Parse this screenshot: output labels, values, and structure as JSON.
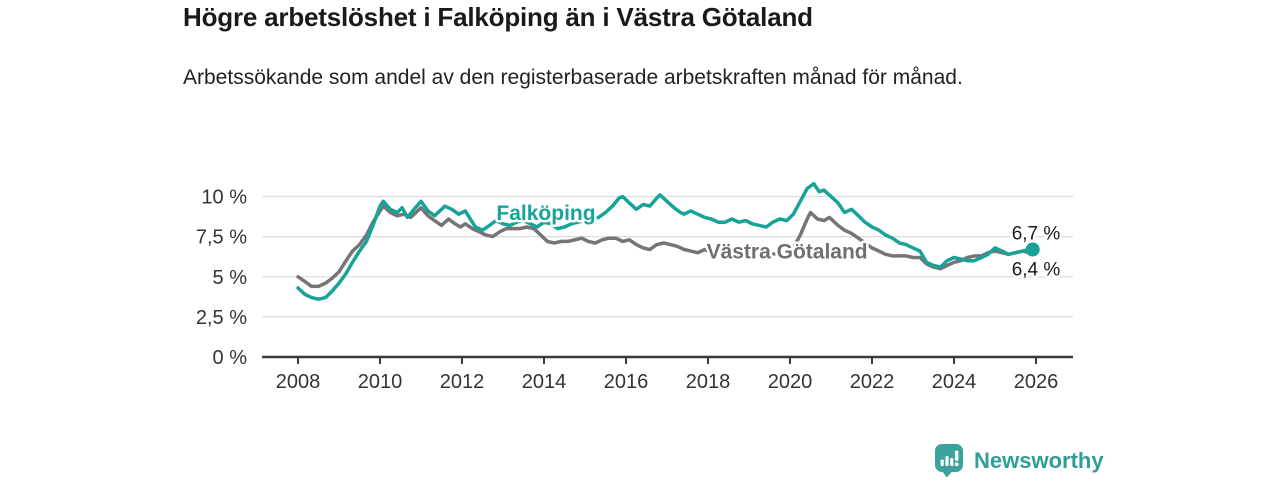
{
  "chart_data": {
    "type": "line",
    "title": "Högre arbetslöshet i Falköping än i Västra Götaland",
    "subtitle": "Arbetssökande som andel av den registerbaserade arbetskraften månad för månad.",
    "xlabel": "",
    "ylabel": "",
    "x_unit": "year",
    "xlim": [
      2007.8,
      2026.9
    ],
    "ylim": [
      0,
      11
    ],
    "grid": "horizontal",
    "legend": "inline-labels",
    "x_ticks": [
      "2008",
      "2010",
      "2012",
      "2014",
      "2016",
      "2018",
      "2020",
      "2022",
      "2024",
      "2026"
    ],
    "y_ticks": [
      {
        "value": 0,
        "label": "0 %"
      },
      {
        "value": 2.5,
        "label": "2,5 %"
      },
      {
        "value": 5,
        "label": "5 %"
      },
      {
        "value": 7.5,
        "label": "7,5 %"
      },
      {
        "value": 10,
        "label": "10 %"
      }
    ],
    "colors": {
      "grid": "#dcdcdc",
      "axis": "#3a3a3a",
      "tick_label": "#333333"
    },
    "series": [
      {
        "name": "Västra Götaland",
        "slug": "vastra-gotaland",
        "color": "#757575",
        "end_value_label": "6,4 %",
        "end_dot": false,
        "points": [
          [
            2008.0,
            5.0
          ],
          [
            2008.17,
            4.7
          ],
          [
            2008.33,
            4.4
          ],
          [
            2008.5,
            4.4
          ],
          [
            2008.67,
            4.6
          ],
          [
            2008.83,
            4.9
          ],
          [
            2009.0,
            5.3
          ],
          [
            2009.17,
            6.0
          ],
          [
            2009.33,
            6.6
          ],
          [
            2009.5,
            7.0
          ],
          [
            2009.67,
            7.6
          ],
          [
            2009.83,
            8.4
          ],
          [
            2010.0,
            9.1
          ],
          [
            2010.08,
            9.4
          ],
          [
            2010.25,
            9.0
          ],
          [
            2010.42,
            8.8
          ],
          [
            2010.58,
            8.9
          ],
          [
            2010.75,
            8.7
          ],
          [
            2010.92,
            9.1
          ],
          [
            2011.0,
            9.3
          ],
          [
            2011.17,
            8.8
          ],
          [
            2011.33,
            8.5
          ],
          [
            2011.5,
            8.2
          ],
          [
            2011.67,
            8.6
          ],
          [
            2011.83,
            8.3
          ],
          [
            2011.96,
            8.1
          ],
          [
            2012.08,
            8.3
          ],
          [
            2012.25,
            8.0
          ],
          [
            2012.42,
            7.8
          ],
          [
            2012.58,
            7.6
          ],
          [
            2012.75,
            7.5
          ],
          [
            2012.92,
            7.8
          ],
          [
            2013.08,
            8.0
          ],
          [
            2013.25,
            8.0
          ],
          [
            2013.42,
            8.0
          ],
          [
            2013.58,
            8.1
          ],
          [
            2013.75,
            8.0
          ],
          [
            2013.92,
            7.6
          ],
          [
            2014.08,
            7.2
          ],
          [
            2014.25,
            7.1
          ],
          [
            2014.42,
            7.2
          ],
          [
            2014.58,
            7.2
          ],
          [
            2014.75,
            7.3
          ],
          [
            2014.92,
            7.4
          ],
          [
            2015.08,
            7.2
          ],
          [
            2015.25,
            7.1
          ],
          [
            2015.42,
            7.3
          ],
          [
            2015.58,
            7.4
          ],
          [
            2015.75,
            7.4
          ],
          [
            2015.92,
            7.2
          ],
          [
            2016.08,
            7.3
          ],
          [
            2016.25,
            7.0
          ],
          [
            2016.42,
            6.8
          ],
          [
            2016.58,
            6.7
          ],
          [
            2016.75,
            7.0
          ],
          [
            2016.92,
            7.1
          ],
          [
            2017.08,
            7.0
          ],
          [
            2017.25,
            6.9
          ],
          [
            2017.42,
            6.7
          ],
          [
            2017.58,
            6.6
          ],
          [
            2017.75,
            6.5
          ],
          [
            2017.92,
            6.7
          ],
          [
            2018.08,
            6.5
          ],
          [
            2018.25,
            6.4
          ],
          [
            2018.42,
            6.4
          ],
          [
            2018.58,
            6.4
          ],
          [
            2018.75,
            6.3
          ],
          [
            2018.92,
            6.4
          ],
          [
            2019.08,
            6.4
          ],
          [
            2019.25,
            6.3
          ],
          [
            2019.42,
            6.3
          ],
          [
            2019.58,
            6.4
          ],
          [
            2019.75,
            6.5
          ],
          [
            2019.92,
            6.5
          ],
          [
            2020.08,
            6.8
          ],
          [
            2020.25,
            7.6
          ],
          [
            2020.42,
            8.6
          ],
          [
            2020.5,
            9.0
          ],
          [
            2020.67,
            8.6
          ],
          [
            2020.83,
            8.5
          ],
          [
            2020.96,
            8.7
          ],
          [
            2021.17,
            8.2
          ],
          [
            2021.33,
            7.9
          ],
          [
            2021.5,
            7.7
          ],
          [
            2021.67,
            7.4
          ],
          [
            2021.83,
            7.1
          ],
          [
            2022.0,
            6.8
          ],
          [
            2022.17,
            6.6
          ],
          [
            2022.33,
            6.4
          ],
          [
            2022.5,
            6.3
          ],
          [
            2022.67,
            6.3
          ],
          [
            2022.83,
            6.3
          ],
          [
            2023.0,
            6.2
          ],
          [
            2023.17,
            6.2
          ],
          [
            2023.33,
            5.8
          ],
          [
            2023.5,
            5.6
          ],
          [
            2023.67,
            5.5
          ],
          [
            2023.83,
            5.7
          ],
          [
            2024.0,
            5.9
          ],
          [
            2024.17,
            6.0
          ],
          [
            2024.33,
            6.2
          ],
          [
            2024.5,
            6.3
          ],
          [
            2024.67,
            6.3
          ],
          [
            2024.83,
            6.5
          ],
          [
            2025.0,
            6.6
          ],
          [
            2025.17,
            6.5
          ],
          [
            2025.33,
            6.4
          ],
          [
            2025.5,
            6.5
          ],
          [
            2025.67,
            6.6
          ],
          [
            2025.83,
            6.5
          ],
          [
            2025.92,
            6.4
          ]
        ]
      },
      {
        "name": "Falköping",
        "slug": "falkoping",
        "color": "#17a398",
        "end_value_label": "6,7 %",
        "end_dot": true,
        "points": [
          [
            2008.0,
            4.3
          ],
          [
            2008.17,
            3.9
          ],
          [
            2008.33,
            3.7
          ],
          [
            2008.5,
            3.6
          ],
          [
            2008.67,
            3.7
          ],
          [
            2008.83,
            4.1
          ],
          [
            2009.0,
            4.6
          ],
          [
            2009.17,
            5.2
          ],
          [
            2009.33,
            5.9
          ],
          [
            2009.5,
            6.6
          ],
          [
            2009.67,
            7.2
          ],
          [
            2009.83,
            8.2
          ],
          [
            2010.0,
            9.4
          ],
          [
            2010.08,
            9.7
          ],
          [
            2010.25,
            9.2
          ],
          [
            2010.42,
            9.0
          ],
          [
            2010.54,
            9.3
          ],
          [
            2010.67,
            8.7
          ],
          [
            2010.83,
            9.2
          ],
          [
            2011.0,
            9.7
          ],
          [
            2011.17,
            9.1
          ],
          [
            2011.33,
            8.8
          ],
          [
            2011.5,
            9.2
          ],
          [
            2011.58,
            9.4
          ],
          [
            2011.75,
            9.2
          ],
          [
            2011.92,
            8.9
          ],
          [
            2012.08,
            9.1
          ],
          [
            2012.25,
            8.4
          ],
          [
            2012.33,
            8.1
          ],
          [
            2012.5,
            7.9
          ],
          [
            2012.67,
            8.2
          ],
          [
            2012.83,
            8.5
          ],
          [
            2013.0,
            8.3
          ],
          [
            2013.17,
            8.2
          ],
          [
            2013.33,
            8.4
          ],
          [
            2013.5,
            8.5
          ],
          [
            2013.67,
            8.3
          ],
          [
            2013.83,
            8.1
          ],
          [
            2014.0,
            8.4
          ],
          [
            2014.17,
            8.3
          ],
          [
            2014.33,
            8.0
          ],
          [
            2014.5,
            8.1
          ],
          [
            2014.67,
            8.3
          ],
          [
            2014.83,
            8.4
          ],
          [
            2015.0,
            8.5
          ],
          [
            2015.17,
            8.6
          ],
          [
            2015.33,
            8.7
          ],
          [
            2015.5,
            9.0
          ],
          [
            2015.67,
            9.4
          ],
          [
            2015.83,
            9.9
          ],
          [
            2015.92,
            10.0
          ],
          [
            2016.08,
            9.6
          ],
          [
            2016.25,
            9.2
          ],
          [
            2016.42,
            9.5
          ],
          [
            2016.58,
            9.4
          ],
          [
            2016.75,
            9.9
          ],
          [
            2016.83,
            10.1
          ],
          [
            2017.0,
            9.7
          ],
          [
            2017.17,
            9.3
          ],
          [
            2017.33,
            9.0
          ],
          [
            2017.42,
            8.9
          ],
          [
            2017.58,
            9.1
          ],
          [
            2017.75,
            8.9
          ],
          [
            2017.92,
            8.7
          ],
          [
            2018.08,
            8.6
          ],
          [
            2018.25,
            8.4
          ],
          [
            2018.42,
            8.4
          ],
          [
            2018.58,
            8.6
          ],
          [
            2018.75,
            8.4
          ],
          [
            2018.92,
            8.5
          ],
          [
            2019.08,
            8.3
          ],
          [
            2019.25,
            8.2
          ],
          [
            2019.42,
            8.1
          ],
          [
            2019.58,
            8.4
          ],
          [
            2019.75,
            8.6
          ],
          [
            2019.92,
            8.5
          ],
          [
            2020.08,
            8.9
          ],
          [
            2020.25,
            9.7
          ],
          [
            2020.42,
            10.5
          ],
          [
            2020.58,
            10.8
          ],
          [
            2020.71,
            10.3
          ],
          [
            2020.83,
            10.4
          ],
          [
            2021.0,
            10.0
          ],
          [
            2021.17,
            9.6
          ],
          [
            2021.33,
            9.0
          ],
          [
            2021.5,
            9.2
          ],
          [
            2021.67,
            8.8
          ],
          [
            2021.83,
            8.4
          ],
          [
            2022.0,
            8.1
          ],
          [
            2022.17,
            7.9
          ],
          [
            2022.33,
            7.6
          ],
          [
            2022.5,
            7.4
          ],
          [
            2022.67,
            7.1
          ],
          [
            2022.83,
            7.0
          ],
          [
            2023.0,
            6.8
          ],
          [
            2023.17,
            6.6
          ],
          [
            2023.33,
            5.9
          ],
          [
            2023.5,
            5.7
          ],
          [
            2023.67,
            5.6
          ],
          [
            2023.83,
            6.0
          ],
          [
            2024.0,
            6.2
          ],
          [
            2024.17,
            6.1
          ],
          [
            2024.33,
            6.0
          ],
          [
            2024.5,
            6.0
          ],
          [
            2024.67,
            6.2
          ],
          [
            2024.83,
            6.4
          ],
          [
            2025.0,
            6.8
          ],
          [
            2025.17,
            6.6
          ],
          [
            2025.33,
            6.4
          ],
          [
            2025.5,
            6.5
          ],
          [
            2025.67,
            6.6
          ],
          [
            2025.83,
            6.7
          ],
          [
            2025.92,
            6.7
          ]
        ]
      }
    ],
    "annotations": [
      {
        "text": "Falköping",
        "x": 2014.05,
        "y": 9.0,
        "color": "#17a398",
        "bold": true,
        "size": 21,
        "name": "series-label-falkoping"
      },
      {
        "text": "Västra Götaland",
        "x": 2019.93,
        "y": 6.6,
        "color": "#6f6f6f",
        "bold": true,
        "size": 21,
        "name": "series-label-vastra-gotaland"
      },
      {
        "text": "6,7 %",
        "x": 2026.0,
        "y": 7.72,
        "color": "#1a1a1a",
        "bold": false,
        "size": 19,
        "name": "end-value-label-falkoping"
      },
      {
        "text": "6,4 %",
        "x": 2026.0,
        "y": 5.48,
        "color": "#1a1a1a",
        "bold": false,
        "size": 19,
        "name": "end-value-label-vastra-gotaland"
      }
    ]
  },
  "footer": {
    "brand": "Newsworthy",
    "logo_icon": "bar-chart-speech-bubble-icon",
    "brand_color": "#2f9e97"
  }
}
